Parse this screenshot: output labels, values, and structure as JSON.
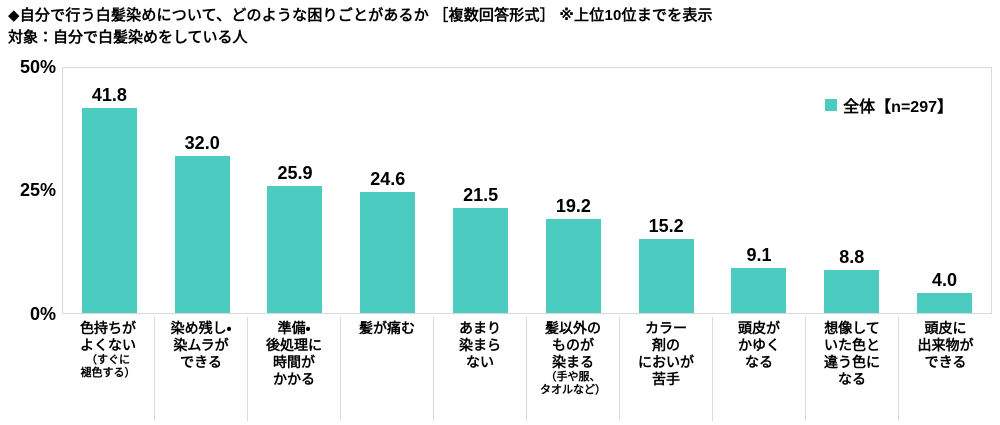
{
  "header": {
    "title": "◆自分で行う白髪染めについて、どのような困りごとがあるか ［複数回答形式］ ※上位10位までを表示",
    "target": "対象：自分で白髪染めをしている人"
  },
  "legend": {
    "label": "全体【n=297】",
    "color": "#4ccbc0"
  },
  "chart_data": {
    "type": "bar",
    "title": "自分で行う白髪染めについて、どのような困りごとがあるか（複数回答形式・上位10位）",
    "legend_entries": [
      "全体【n=297】"
    ],
    "bar_color": "#4ccbc0",
    "grid": false,
    "ylim": [
      0,
      50
    ],
    "yticks": {
      "t50": "50%",
      "t25": "25%",
      "t0": "0%"
    },
    "categories": [
      {
        "label_lines": [
          "色持ちが",
          "よくない"
        ],
        "note_lines": [
          "（すぐに",
          "褪色する）"
        ],
        "value": 41.8,
        "value_text": "41.8"
      },
      {
        "label_lines": [
          "染め残し・",
          "染ムラが",
          "できる"
        ],
        "note_lines": [],
        "value": 32.0,
        "value_text": "32.0"
      },
      {
        "label_lines": [
          "準備・",
          "後処理に",
          "時間が",
          "かかる"
        ],
        "note_lines": [],
        "value": 25.9,
        "value_text": "25.9"
      },
      {
        "label_lines": [
          "髪が痛む"
        ],
        "note_lines": [],
        "value": 24.6,
        "value_text": "24.6"
      },
      {
        "label_lines": [
          "あまり",
          "染まら",
          "ない"
        ],
        "note_lines": [],
        "value": 21.5,
        "value_text": "21.5"
      },
      {
        "label_lines": [
          "髪以外の",
          "ものが",
          "染まる"
        ],
        "note_lines": [
          "（手や服、",
          "タオルなど）"
        ],
        "value": 19.2,
        "value_text": "19.2"
      },
      {
        "label_lines": [
          "カラー",
          "剤の",
          "においが",
          "苦手"
        ],
        "note_lines": [],
        "value": 15.2,
        "value_text": "15.2"
      },
      {
        "label_lines": [
          "頭皮が",
          "かゆく",
          "なる"
        ],
        "note_lines": [],
        "value": 9.1,
        "value_text": "9.1"
      },
      {
        "label_lines": [
          "想像して",
          "いた色と",
          "違う色に",
          "なる"
        ],
        "note_lines": [],
        "value": 8.8,
        "value_text": "8.8"
      },
      {
        "label_lines": [
          "頭皮に",
          "出来物が",
          "できる"
        ],
        "note_lines": [],
        "value": 4.0,
        "value_text": "4.0"
      }
    ]
  }
}
